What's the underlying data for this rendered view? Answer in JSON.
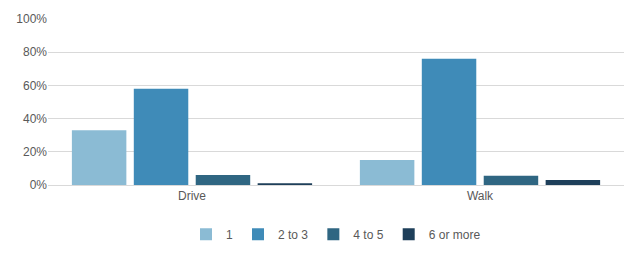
{
  "chart_data": {
    "type": "bar",
    "categories": [
      "Drive",
      "Walk"
    ],
    "series": [
      {
        "name": "1",
        "color": "#8bbbd4",
        "values": [
          33,
          15
        ]
      },
      {
        "name": "2 to 3",
        "color": "#3f8bb8",
        "values": [
          58,
          76
        ]
      },
      {
        "name": "4 to 5",
        "color": "#2f6682",
        "values": [
          6,
          5.5
        ]
      },
      {
        "name": "6 or more",
        "color": "#1e3f5a",
        "values": [
          1,
          3
        ]
      }
    ],
    "ylim": [
      0,
      100
    ],
    "yticks": [
      {
        "value": 0,
        "label": "0%"
      },
      {
        "value": 20,
        "label": "20%"
      },
      {
        "value": 40,
        "label": "40%"
      },
      {
        "value": 60,
        "label": "60%"
      },
      {
        "value": 80,
        "label": "80%"
      },
      {
        "value": 100,
        "label": "100%"
      }
    ],
    "grid": true,
    "legend": "bottom"
  }
}
